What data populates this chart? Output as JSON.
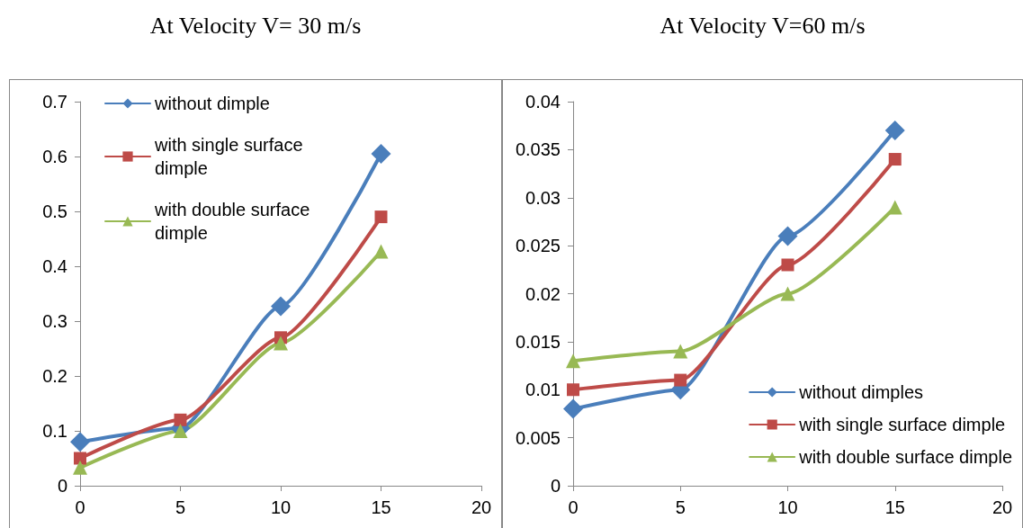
{
  "chart_data": [
    {
      "type": "line",
      "title": "At Velocity V= 30 m/s",
      "x": [
        0,
        5,
        10,
        15
      ],
      "xlim": [
        0,
        20
      ],
      "xticks": [
        0,
        5,
        10,
        15,
        20
      ],
      "ylim": [
        0,
        0.7
      ],
      "yticks": [
        0,
        0.1,
        0.2,
        0.3,
        0.4,
        0.5,
        0.6,
        0.7
      ],
      "grid": false,
      "legend": "top left",
      "series": [
        {
          "name": "without dimple",
          "color": "#4a7ebb",
          "marker": "diamond",
          "values": [
            0.08,
            0.105,
            0.327,
            0.605
          ]
        },
        {
          "name": "with single surface dimple",
          "color": "#be4b48",
          "marker": "square",
          "values": [
            0.05,
            0.12,
            0.27,
            0.49
          ]
        },
        {
          "name": "with double surface dimple",
          "color": "#98b954",
          "marker": "triangle",
          "values": [
            0.033,
            0.1,
            0.26,
            0.427
          ]
        }
      ]
    },
    {
      "type": "line",
      "title": "At Velocity V=60 m/s",
      "x": [
        0,
        5,
        10,
        15
      ],
      "xlim": [
        0,
        20
      ],
      "xticks": [
        0,
        5,
        10,
        15,
        20
      ],
      "ylim": [
        0,
        0.04
      ],
      "yticks": [
        0,
        0.005,
        0.01,
        0.015,
        0.02,
        0.025,
        0.03,
        0.035,
        0.04
      ],
      "grid": false,
      "legend": "bottom right",
      "series": [
        {
          "name": "without dimples",
          "color": "#4a7ebb",
          "marker": "diamond",
          "values": [
            0.008,
            0.01,
            0.026,
            0.037
          ]
        },
        {
          "name": "with single surface dimple",
          "color": "#be4b48",
          "marker": "square",
          "values": [
            0.01,
            0.011,
            0.023,
            0.034
          ]
        },
        {
          "name": "with double surface dimple",
          "color": "#98b954",
          "marker": "triangle",
          "values": [
            0.013,
            0.014,
            0.02,
            0.029
          ]
        }
      ]
    }
  ]
}
